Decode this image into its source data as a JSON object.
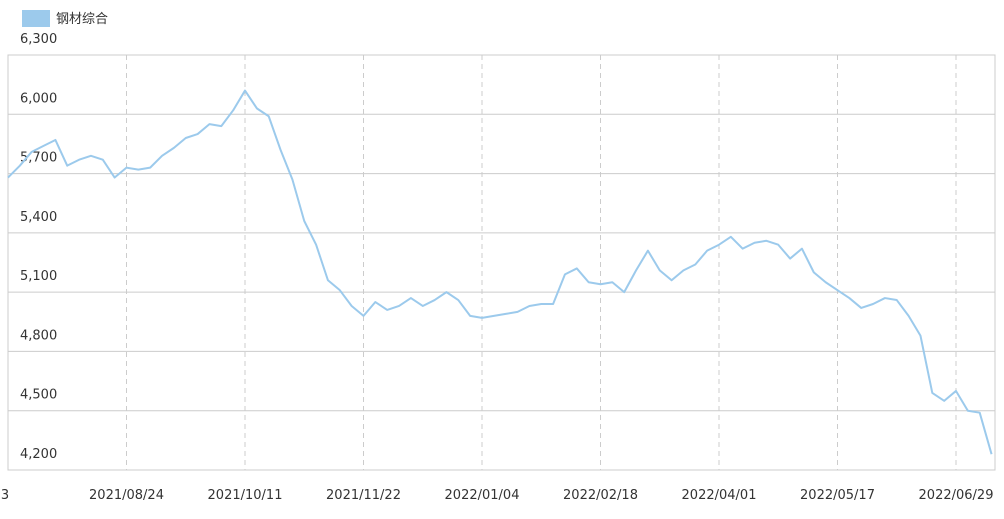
{
  "chart_data": {
    "type": "line",
    "legend": "钢材综合",
    "color": "#9ccaec",
    "categories": [
      "3",
      null,
      null,
      null,
      null,
      null,
      null,
      null,
      null,
      null,
      "2021/08/24",
      null,
      null,
      null,
      null,
      null,
      null,
      null,
      null,
      null,
      "2021/10/11",
      null,
      null,
      null,
      null,
      null,
      null,
      null,
      null,
      null,
      "2021/11/22",
      null,
      null,
      null,
      null,
      null,
      null,
      null,
      null,
      null,
      "2022/01/04",
      null,
      null,
      null,
      null,
      null,
      null,
      null,
      null,
      null,
      "2022/02/18",
      null,
      null,
      null,
      null,
      null,
      null,
      null,
      null,
      null,
      "2022/04/01",
      null,
      null,
      null,
      null,
      null,
      null,
      null,
      null,
      null,
      "2022/05/17",
      null,
      null,
      null,
      null,
      null,
      null,
      null,
      null,
      null,
      "2022/06/29",
      null,
      null,
      null
    ],
    "values": [
      5680,
      5740,
      5810,
      5840,
      5870,
      5740,
      5770,
      5790,
      5770,
      5680,
      5730,
      5720,
      5730,
      5790,
      5830,
      5880,
      5900,
      5950,
      5940,
      6020,
      6120,
      6030,
      5990,
      5820,
      5670,
      5460,
      5340,
      5160,
      5110,
      5030,
      4980,
      5050,
      5010,
      5030,
      5070,
      5030,
      5060,
      5100,
      5060,
      4980,
      4970,
      4980,
      4990,
      5000,
      5030,
      5040,
      5040,
      5190,
      5220,
      5150,
      5140,
      5150,
      5100,
      5210,
      5310,
      5210,
      5160,
      5210,
      5240,
      5310,
      5340,
      5380,
      5320,
      5350,
      5360,
      5340,
      5270,
      5320,
      5200,
      5150,
      5110,
      5070,
      5020,
      5040,
      5070,
      5060,
      4980,
      4880,
      4590,
      4550,
      4600,
      4500,
      4490,
      4280
    ],
    "ylim": [
      4200,
      6300
    ],
    "yticks": [
      {
        "value": 4200,
        "label": "4,200"
      },
      {
        "value": 4500,
        "label": "4,500"
      },
      {
        "value": 4800,
        "label": "4,800"
      },
      {
        "value": 5100,
        "label": "5,100"
      },
      {
        "value": 5400,
        "label": "5,400"
      },
      {
        "value": 5700,
        "label": "5,700"
      },
      {
        "value": 6000,
        "label": "6,000"
      },
      {
        "value": 6300,
        "label": "6,300"
      }
    ],
    "grid": true
  }
}
